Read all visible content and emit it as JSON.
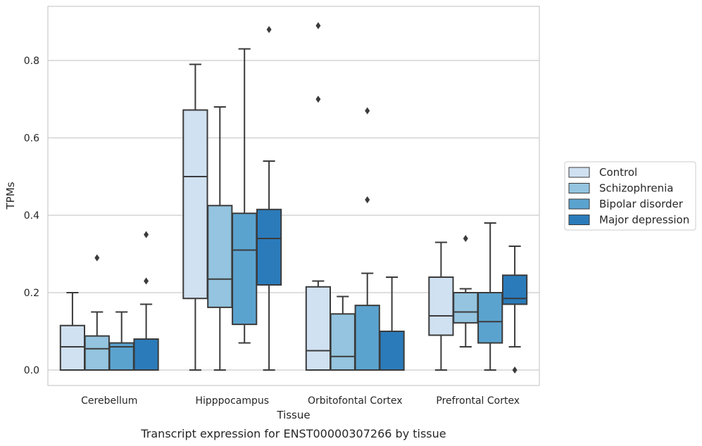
{
  "chart_data": {
    "type": "box",
    "caption": "Transcript expression for ENST00000307266 by tissue",
    "xlabel": "Tissue",
    "ylabel": "TPMs",
    "ylim": [
      -0.04,
      0.94
    ],
    "yticks": [
      0.0,
      0.2,
      0.4,
      0.6,
      0.8
    ],
    "ytick_labels": [
      "0.0",
      "0.2",
      "0.4",
      "0.6",
      "0.8"
    ],
    "grid": "horizontal",
    "legend_position": "right",
    "categories": [
      "Cerebellum",
      "Hipppocampus",
      "Orbitofontal Cortex",
      "Prefrontal Cortex"
    ],
    "series": [
      {
        "name": "Control",
        "color": "#d0e1f2",
        "boxes": [
          {
            "whislo": 0.0,
            "q1": 0.0,
            "med": 0.06,
            "q3": 0.115,
            "whishi": 0.2,
            "fliers": []
          },
          {
            "whislo": 0.0,
            "q1": 0.185,
            "med": 0.5,
            "q3": 0.672,
            "whishi": 0.79,
            "fliers": []
          },
          {
            "whislo": 0.0,
            "q1": 0.0,
            "med": 0.05,
            "q3": 0.215,
            "whishi": 0.23,
            "fliers": [
              0.7,
              0.89
            ]
          },
          {
            "whislo": 0.0,
            "q1": 0.09,
            "med": 0.14,
            "q3": 0.24,
            "whishi": 0.33,
            "fliers": []
          }
        ]
      },
      {
        "name": "Schizophrenia",
        "color": "#94c4df",
        "boxes": [
          {
            "whislo": 0.0,
            "q1": 0.0,
            "med": 0.055,
            "q3": 0.088,
            "whishi": 0.15,
            "fliers": [
              0.29
            ]
          },
          {
            "whislo": 0.0,
            "q1": 0.162,
            "med": 0.235,
            "q3": 0.425,
            "whishi": 0.68,
            "fliers": []
          },
          {
            "whislo": 0.0,
            "q1": 0.0,
            "med": 0.035,
            "q3": 0.145,
            "whishi": 0.19,
            "fliers": []
          },
          {
            "whislo": 0.06,
            "q1": 0.122,
            "med": 0.15,
            "q3": 0.2,
            "whishi": 0.21,
            "fliers": [
              0.34
            ]
          }
        ]
      },
      {
        "name": "Bipolar disorder",
        "color": "#5ba3cf",
        "boxes": [
          {
            "whislo": 0.0,
            "q1": 0.0,
            "med": 0.06,
            "q3": 0.07,
            "whishi": 0.15,
            "fliers": []
          },
          {
            "whislo": 0.07,
            "q1": 0.118,
            "med": 0.31,
            "q3": 0.405,
            "whishi": 0.83,
            "fliers": []
          },
          {
            "whislo": 0.0,
            "q1": 0.0,
            "med": 0.0,
            "q3": 0.167,
            "whishi": 0.25,
            "fliers": [
              0.44,
              0.67
            ]
          },
          {
            "whislo": 0.0,
            "q1": 0.07,
            "med": 0.125,
            "q3": 0.2,
            "whishi": 0.38,
            "fliers": []
          }
        ]
      },
      {
        "name": "Major depression",
        "color": "#2b7bba",
        "boxes": [
          {
            "whislo": 0.0,
            "q1": 0.0,
            "med": 0.0,
            "q3": 0.08,
            "whishi": 0.17,
            "fliers": [
              0.23,
              0.35
            ]
          },
          {
            "whislo": 0.0,
            "q1": 0.22,
            "med": 0.34,
            "q3": 0.415,
            "whishi": 0.54,
            "fliers": [
              0.88
            ]
          },
          {
            "whislo": 0.0,
            "q1": 0.0,
            "med": 0.0,
            "q3": 0.1,
            "whishi": 0.24,
            "fliers": []
          },
          {
            "whislo": 0.06,
            "q1": 0.17,
            "med": 0.185,
            "q3": 0.245,
            "whishi": 0.32,
            "fliers": [
              0.0
            ]
          }
        ]
      }
    ]
  }
}
